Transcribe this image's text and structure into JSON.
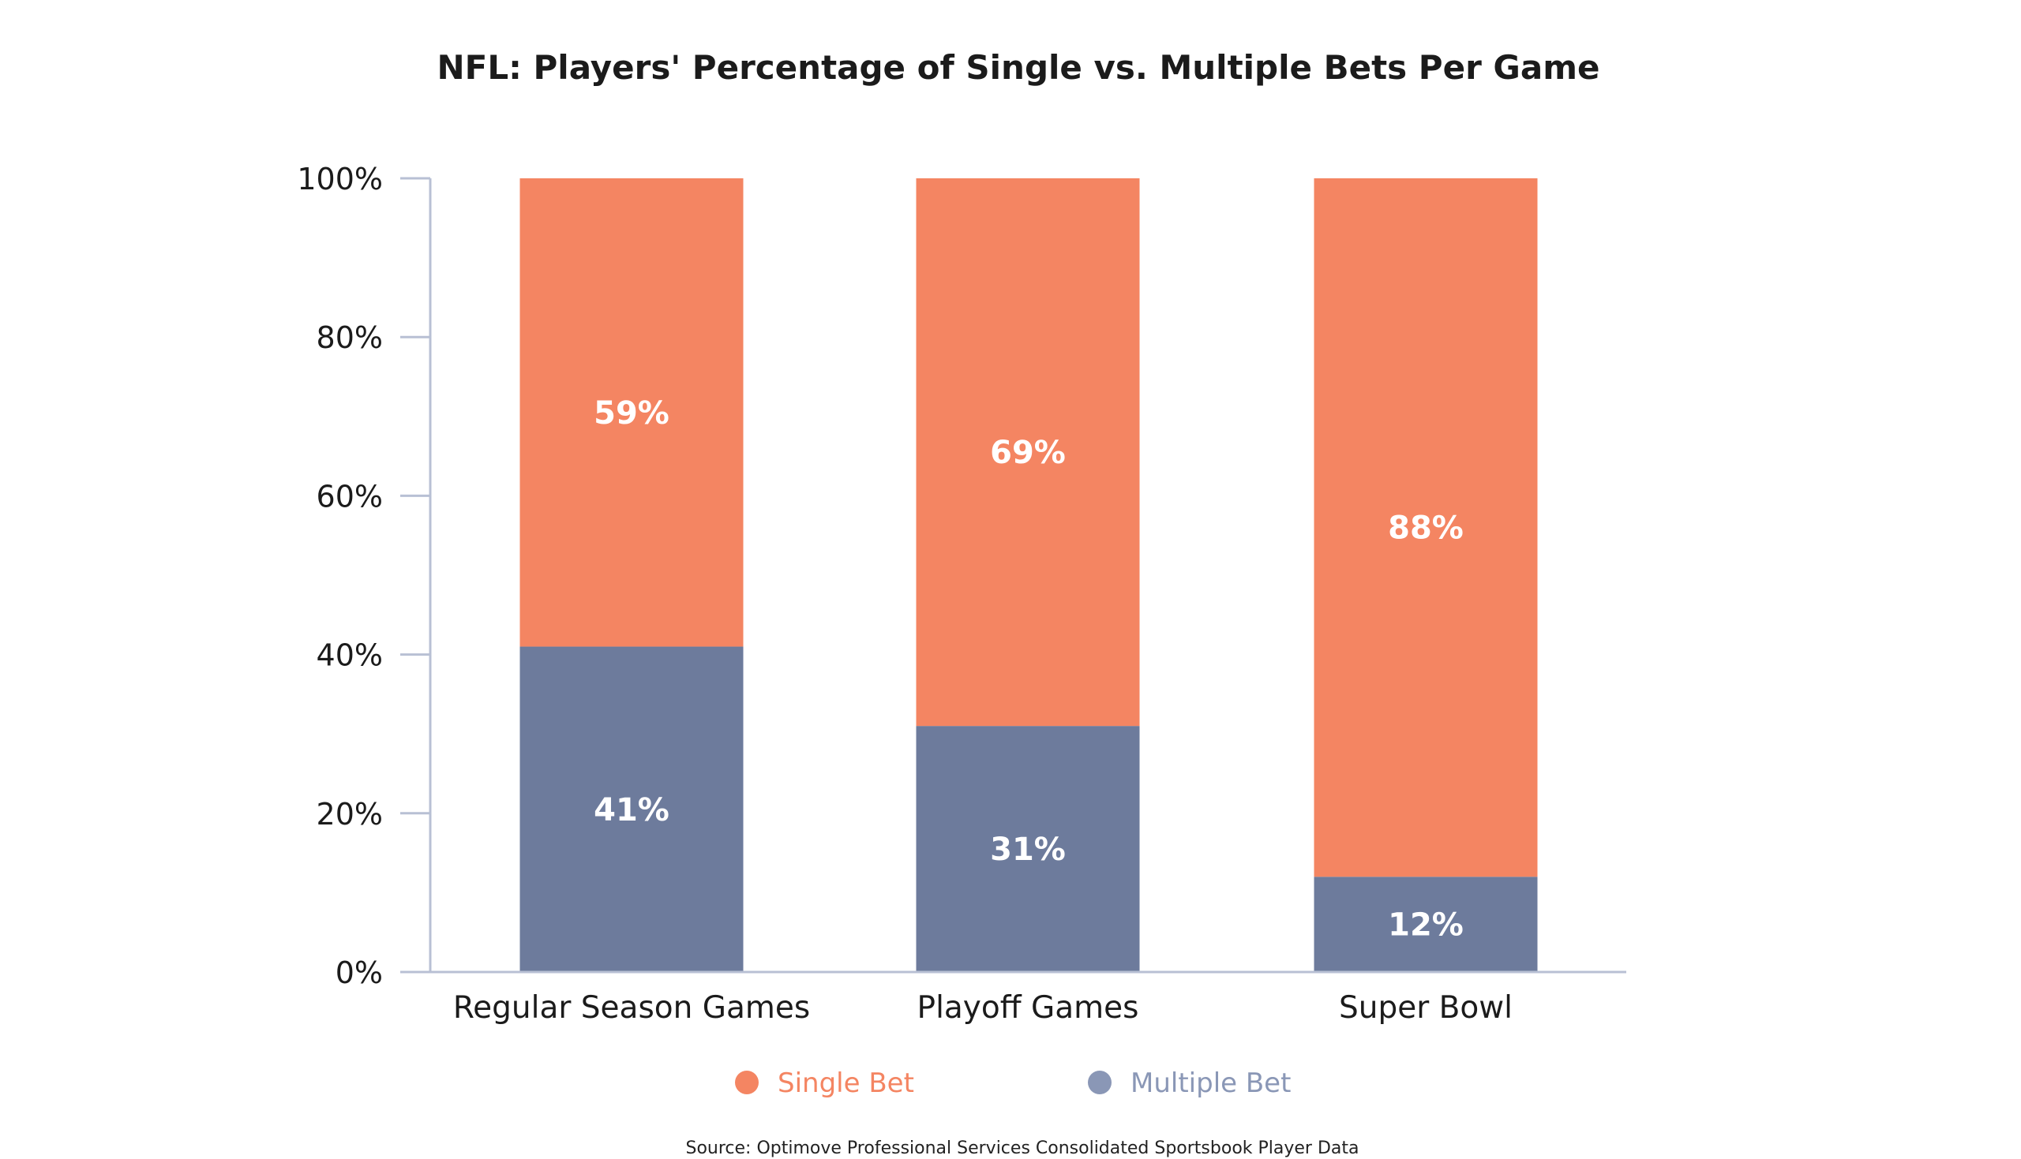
{
  "chart_data": {
    "type": "bar",
    "stacked": true,
    "title": "NFL: Players' Percentage of Single vs. Multiple Bets Per Game",
    "categories": [
      "Regular Season Games",
      "Playoff Games",
      "Super Bowl"
    ],
    "series": [
      {
        "name": "Multiple Bet",
        "values": [
          41,
          31,
          12
        ],
        "labels": [
          "41%",
          "31%",
          "12%"
        ],
        "color": "#6d7b9c"
      },
      {
        "name": "Single Bet",
        "values": [
          59,
          69,
          88
        ],
        "labels": [
          "59%",
          "69%",
          "88%"
        ],
        "color": "#f48562"
      }
    ],
    "ylim": [
      0,
      100
    ],
    "yticks": [
      0,
      20,
      40,
      60,
      80,
      100
    ],
    "ytick_labels": [
      "0%",
      "20%",
      "40%",
      "60%",
      "80%",
      "100%"
    ],
    "xlabel": "",
    "ylabel": "",
    "grid": false,
    "legend": {
      "position": "bottom",
      "entries": [
        {
          "label": "Single Bet",
          "color": "#f48562",
          "text_color": "#f48562"
        },
        {
          "label": "Multiple Bet",
          "color": "#8a97b6",
          "text_color": "#8a97b6"
        }
      ]
    },
    "source": "Source: Optimove Professional Services Consolidated Sportsbook Player Data",
    "axis_color": "#b8c0d4"
  }
}
